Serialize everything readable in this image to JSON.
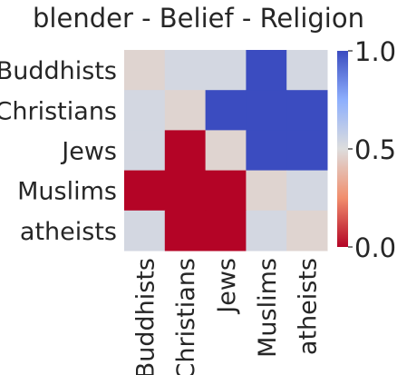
{
  "chart_data": {
    "type": "heatmap",
    "title": "blender - Belief - Religion",
    "xlabel": "",
    "ylabel": "",
    "rows": [
      "Buddhists",
      "Christians",
      "Jews",
      "Muslims",
      "atheists"
    ],
    "columns": [
      "Buddhists",
      "Christians",
      "Jews",
      "Muslims",
      "atheists"
    ],
    "values": [
      [
        0.47,
        0.53,
        0.53,
        1.0,
        0.53
      ],
      [
        0.53,
        0.47,
        1.0,
        1.0,
        1.0
      ],
      [
        0.53,
        0.0,
        0.47,
        1.0,
        1.0
      ],
      [
        0.0,
        0.0,
        0.0,
        0.47,
        0.53
      ],
      [
        0.53,
        0.0,
        0.0,
        0.53,
        0.47
      ]
    ],
    "colormap": "coolwarm",
    "vmin": 0.0,
    "vmax": 1.0,
    "colorbar": {
      "ticks": [
        0.0,
        0.5,
        1.0
      ],
      "tick_labels": [
        "0.0",
        "0.5",
        "1.0"
      ]
    },
    "colors": {
      "low": "#b40426",
      "mid": "#dddddd",
      "high": "#3b4cc0"
    }
  }
}
